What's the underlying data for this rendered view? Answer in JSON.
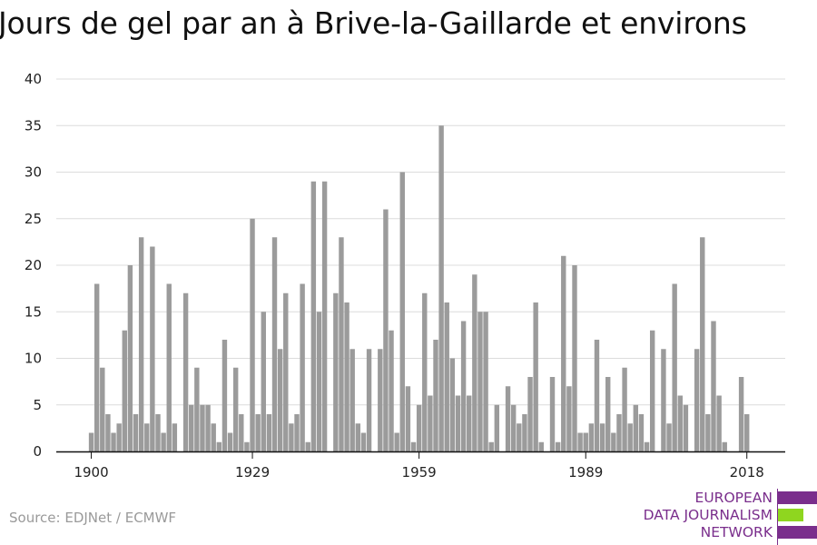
{
  "chart_data": {
    "type": "bar",
    "title": "Jours de gel par an à Brive-la-Gaillarde et environs",
    "xlabel": "",
    "ylabel": "",
    "ylim": [
      0,
      40
    ],
    "yticks": [
      0,
      5,
      10,
      15,
      20,
      25,
      30,
      35,
      40
    ],
    "xticks": [
      1900,
      1929,
      1959,
      1989,
      2018
    ],
    "grid": true,
    "bar_color": "#9b9b9b",
    "x": [
      1900,
      1901,
      1902,
      1903,
      1904,
      1905,
      1906,
      1907,
      1908,
      1909,
      1910,
      1911,
      1912,
      1913,
      1914,
      1915,
      1916,
      1917,
      1918,
      1919,
      1920,
      1921,
      1922,
      1923,
      1924,
      1925,
      1926,
      1927,
      1928,
      1929,
      1930,
      1931,
      1932,
      1933,
      1934,
      1935,
      1936,
      1937,
      1938,
      1939,
      1940,
      1941,
      1942,
      1943,
      1944,
      1945,
      1946,
      1947,
      1948,
      1949,
      1950,
      1951,
      1952,
      1953,
      1954,
      1955,
      1956,
      1957,
      1958,
      1959,
      1960,
      1961,
      1962,
      1963,
      1964,
      1965,
      1966,
      1967,
      1968,
      1969,
      1970,
      1971,
      1972,
      1973,
      1974,
      1975,
      1976,
      1977,
      1978,
      1979,
      1980,
      1981,
      1982,
      1983,
      1984,
      1985,
      1986,
      1987,
      1988,
      1989,
      1990,
      1991,
      1992,
      1993,
      1994,
      1995,
      1996,
      1997,
      1998,
      1999,
      2000,
      2001,
      2002,
      2003,
      2004,
      2005,
      2006,
      2007,
      2008,
      2009,
      2010,
      2011,
      2012,
      2013,
      2014,
      2015,
      2016,
      2017,
      2018,
      2019
    ],
    "values": [
      2,
      18,
      9,
      4,
      2,
      3,
      13,
      20,
      4,
      23,
      3,
      22,
      4,
      2,
      18,
      3,
      0,
      17,
      5,
      9,
      5,
      5,
      3,
      1,
      12,
      2,
      9,
      4,
      1,
      25,
      4,
      15,
      4,
      23,
      11,
      17,
      3,
      4,
      18,
      1,
      29,
      15,
      29,
      0,
      17,
      23,
      16,
      11,
      3,
      2,
      11,
      0,
      11,
      26,
      13,
      2,
      30,
      7,
      1,
      5,
      17,
      6,
      12,
      35,
      16,
      10,
      6,
      14,
      6,
      19,
      15,
      15,
      1,
      5,
      0,
      7,
      5,
      3,
      4,
      8,
      16,
      1,
      0,
      8,
      1,
      21,
      7,
      20,
      2,
      2,
      3,
      12,
      3,
      8,
      2,
      4,
      9,
      3,
      5,
      4,
      1,
      13,
      0,
      11,
      3,
      18,
      6,
      5,
      0,
      11,
      23,
      4,
      14,
      6,
      1,
      0,
      0,
      8,
      4,
      0
    ]
  },
  "source": "Source: EDJNet / ECMWF",
  "logo": {
    "line1": "EUROPEAN",
    "line2": "DATA JOURNALISM",
    "line3": "NETWORK",
    "colors": {
      "purple": "#7a2e8c",
      "green": "#8fd61f"
    }
  }
}
